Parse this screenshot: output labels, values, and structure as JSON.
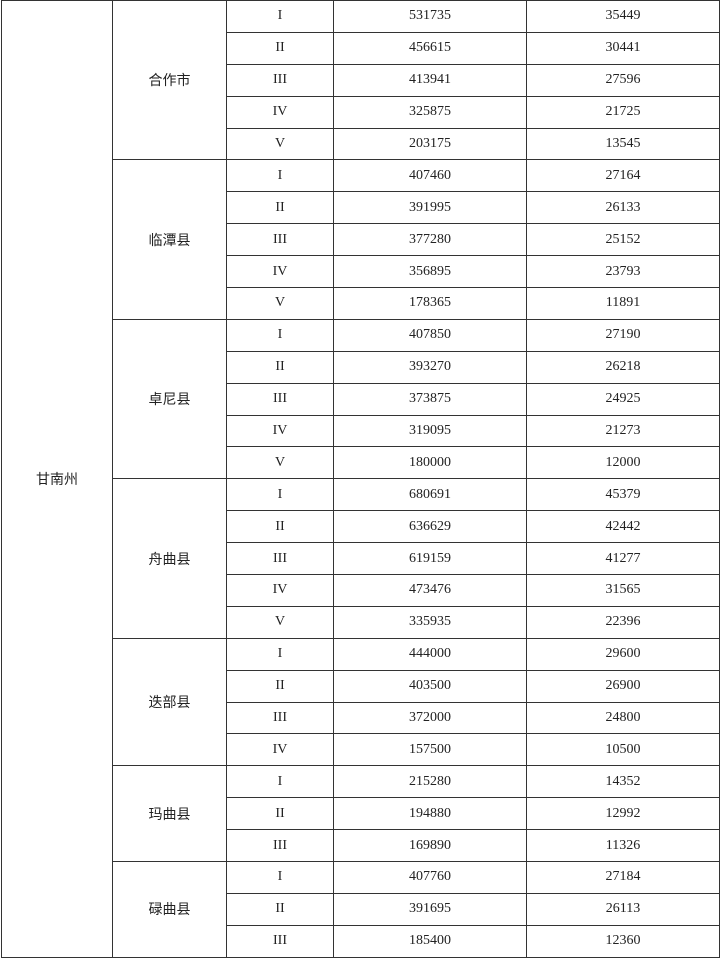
{
  "table": {
    "region": "甘南州",
    "groups": [
      {
        "county": "合作市",
        "rows": [
          [
            "I",
            "531735",
            "35449"
          ],
          [
            "II",
            "456615",
            "30441"
          ],
          [
            "III",
            "413941",
            "27596"
          ],
          [
            "IV",
            "325875",
            "21725"
          ],
          [
            "V",
            "203175",
            "13545"
          ]
        ]
      },
      {
        "county": "临潭县",
        "rows": [
          [
            "I",
            "407460",
            "27164"
          ],
          [
            "II",
            "391995",
            "26133"
          ],
          [
            "III",
            "377280",
            "25152"
          ],
          [
            "IV",
            "356895",
            "23793"
          ],
          [
            "V",
            "178365",
            "11891"
          ]
        ]
      },
      {
        "county": "卓尼县",
        "rows": [
          [
            "I",
            "407850",
            "27190"
          ],
          [
            "II",
            "393270",
            "26218"
          ],
          [
            "III",
            "373875",
            "24925"
          ],
          [
            "IV",
            "319095",
            "21273"
          ],
          [
            "V",
            "180000",
            "12000"
          ]
        ]
      },
      {
        "county": "舟曲县",
        "rows": [
          [
            "I",
            "680691",
            "45379"
          ],
          [
            "II",
            "636629",
            "42442"
          ],
          [
            "III",
            "619159",
            "41277"
          ],
          [
            "IV",
            "473476",
            "31565"
          ],
          [
            "V",
            "335935",
            "22396"
          ]
        ]
      },
      {
        "county": "迭部县",
        "rows": [
          [
            "I",
            "444000",
            "29600"
          ],
          [
            "II",
            "403500",
            "26900"
          ],
          [
            "III",
            "372000",
            "24800"
          ],
          [
            "IV",
            "157500",
            "10500"
          ]
        ]
      },
      {
        "county": "玛曲县",
        "rows": [
          [
            "I",
            "215280",
            "14352"
          ],
          [
            "II",
            "194880",
            "12992"
          ],
          [
            "III",
            "169890",
            "11326"
          ]
        ]
      },
      {
        "county": "碌曲县",
        "rows": [
          [
            "I",
            "407760",
            "27184"
          ],
          [
            "II",
            "391695",
            "26113"
          ],
          [
            "III",
            "185400",
            "12360"
          ]
        ]
      }
    ]
  }
}
